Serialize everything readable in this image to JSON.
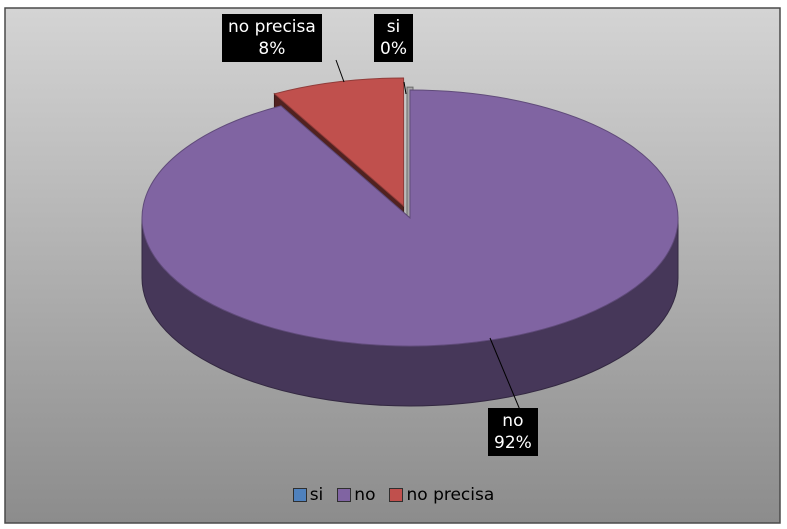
{
  "chart_data": {
    "type": "pie",
    "three_d": true,
    "exploded": true,
    "categories": [
      "si",
      "no",
      "no precisa"
    ],
    "values": [
      0,
      92,
      8
    ],
    "value_labels": [
      "0%",
      "92%",
      "8%"
    ],
    "colors": [
      "#4F81BD",
      "#8064A2",
      "#C0504D"
    ],
    "legend_position": "bottom",
    "background": "gradient-gray"
  }
}
